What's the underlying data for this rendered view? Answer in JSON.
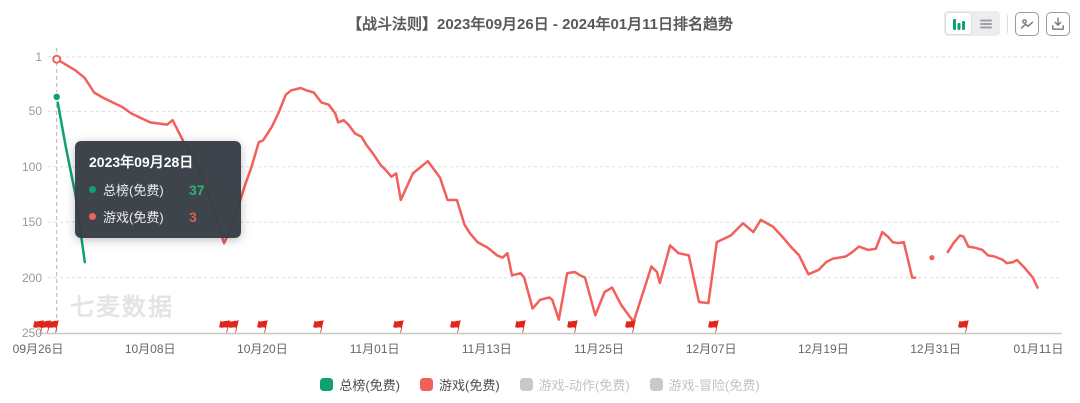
{
  "header": {
    "title": "【战斗法则】2023年09月26日 - 2024年01月11日排名趋势"
  },
  "controls": {
    "view_toggle": [
      {
        "id": "chart-view",
        "icon": "bar-chart-icon",
        "active": true
      },
      {
        "id": "table-view",
        "icon": "list-icon",
        "active": false
      }
    ],
    "actions": [
      {
        "id": "save-image",
        "icon": "image-icon"
      },
      {
        "id": "download",
        "icon": "download-icon"
      }
    ]
  },
  "watermark": "七麦数据",
  "tooltip": {
    "date": "2023年09月28日",
    "rows": [
      {
        "label": "总榜(免费)",
        "value": "37",
        "dot_color": "#10a26e",
        "value_color": "#31b175"
      },
      {
        "label": "游戏(免费)",
        "value": "3",
        "dot_color": "#f1605b",
        "value_color": "#e05a50"
      }
    ]
  },
  "legend": {
    "items": [
      {
        "label": "总榜(免费)",
        "color": "#10a26e",
        "disabled": false
      },
      {
        "label": "游戏(免费)",
        "color": "#f1605b",
        "disabled": false
      },
      {
        "label": "游戏-动作(免费)",
        "color": "#c9c9c9",
        "disabled": true
      },
      {
        "label": "游戏-冒险(免费)",
        "color": "#c9c9c9",
        "disabled": true
      }
    ]
  },
  "chart_data": {
    "type": "line",
    "title": "【战斗法则】2023年09月26日 - 2024年01月11日排名趋势",
    "start_date": "2023-09-26",
    "grid": "horizontal-dashed",
    "y_axis": {
      "inverted": true,
      "range": [
        1,
        250
      ],
      "ticks": [
        1,
        50,
        100,
        150,
        200,
        250
      ]
    },
    "x_axis": {
      "ticks": [
        {
          "label": "09月26日",
          "day": 0
        },
        {
          "label": "10月08日",
          "day": 12
        },
        {
          "label": "10月20日",
          "day": 24
        },
        {
          "label": "11月01日",
          "day": 36
        },
        {
          "label": "11月13日",
          "day": 48
        },
        {
          "label": "11月25日",
          "day": 60
        },
        {
          "label": "12月07日",
          "day": 72
        },
        {
          "label": "12月19日",
          "day": 84
        },
        {
          "label": "12月31日",
          "day": 96
        },
        {
          "label": "01月11日",
          "day": 107
        }
      ]
    },
    "series": [
      {
        "name": "总榜(免费)",
        "color": "#10a26e",
        "segments": [
          [
            [
              2,
              37
            ],
            [
              3,
              83
            ],
            [
              4,
              125
            ],
            [
              5,
              186
            ]
          ]
        ],
        "isolated_points": []
      },
      {
        "name": "游戏(免费)",
        "color": "#f1605b",
        "segments": [
          [
            [
              2,
              3
            ],
            [
              4,
              13
            ],
            [
              5,
              20
            ],
            [
              6,
              33
            ],
            [
              7,
              38
            ],
            [
              9,
              46
            ],
            [
              10,
              52
            ],
            [
              11,
              56
            ],
            [
              12,
              60
            ],
            [
              13.8,
              62
            ],
            [
              14.4,
              58
            ],
            [
              15.6,
              78
            ],
            [
              16.9,
              97
            ],
            [
              18.1,
              121
            ],
            [
              18.8,
              140
            ],
            [
              19.9,
              169
            ],
            [
              20.7,
              154
            ],
            [
              21.3,
              139
            ],
            [
              22.2,
              115
            ],
            [
              22.8,
              101
            ],
            [
              23.6,
              78
            ],
            [
              24.1,
              76
            ],
            [
              25,
              64
            ],
            [
              25.7,
              52
            ],
            [
              26.5,
              35
            ],
            [
              27.1,
              31
            ],
            [
              28.1,
              29
            ],
            [
              28.7,
              31
            ],
            [
              29.5,
              33
            ],
            [
              30.3,
              42
            ],
            [
              31.1,
              44
            ],
            [
              31.8,
              52
            ],
            [
              32.1,
              60
            ],
            [
              32.7,
              58
            ],
            [
              33.2,
              62
            ],
            [
              33.9,
              70
            ],
            [
              34.6,
              73
            ],
            [
              35.1,
              80
            ],
            [
              35.9,
              89
            ],
            [
              36.6,
              98
            ],
            [
              37.2,
              103
            ],
            [
              37.8,
              109
            ],
            [
              38.3,
              106
            ],
            [
              38.8,
              130
            ],
            [
              40.1,
              106
            ],
            [
              41.7,
              95
            ],
            [
              43,
              110
            ],
            [
              43.8,
              130
            ],
            [
              44.8,
              130
            ],
            [
              45.6,
              152
            ],
            [
              46.2,
              160
            ],
            [
              47,
              168
            ],
            [
              48.1,
              173
            ],
            [
              49.1,
              180
            ],
            [
              49.7,
              182
            ],
            [
              50.2,
              178
            ],
            [
              50.7,
              198
            ],
            [
              51.6,
              196
            ],
            [
              52,
              200
            ],
            [
              52.9,
              228
            ],
            [
              53.7,
              220
            ],
            [
              54.7,
              218
            ],
            [
              55,
              220
            ],
            [
              55.7,
              238
            ],
            [
              56.6,
              196
            ],
            [
              57.4,
              195
            ],
            [
              58,
              198
            ],
            [
              58.5,
              200
            ],
            [
              59.6,
              234
            ],
            [
              60.6,
              213
            ],
            [
              61.4,
              209
            ],
            [
              62.4,
              225
            ],
            [
              63.7,
              240
            ],
            [
              65.6,
              190
            ],
            [
              66.2,
              195
            ],
            [
              66.5,
              205
            ],
            [
              67.6,
              171
            ],
            [
              68.5,
              178
            ],
            [
              69.6,
              180
            ],
            [
              70.7,
              222
            ],
            [
              71.7,
              223
            ],
            [
              72.6,
              168
            ],
            [
              74.1,
              162
            ],
            [
              75.4,
              151
            ],
            [
              76.5,
              159
            ],
            [
              77.3,
              148
            ],
            [
              78.6,
              154
            ],
            [
              79.7,
              164
            ],
            [
              80.5,
              172
            ],
            [
              81.4,
              180
            ],
            [
              82.4,
              197
            ],
            [
              83.5,
              193
            ],
            [
              84.3,
              186
            ],
            [
              85,
              183
            ],
            [
              86.4,
              181
            ],
            [
              87.1,
              177
            ],
            [
              87.8,
              172
            ],
            [
              88.8,
              175
            ],
            [
              89.6,
              174
            ],
            [
              90.3,
              159
            ],
            [
              90.9,
              163
            ],
            [
              91.4,
              168
            ],
            [
              92,
              169
            ],
            [
              92.6,
              168
            ],
            [
              93.5,
              200
            ],
            [
              93.8,
              200
            ]
          ],
          [
            [
              97.3,
              177
            ],
            [
              97.9,
              169
            ],
            [
              98.6,
              162
            ],
            [
              99,
              163
            ],
            [
              99.5,
              172
            ],
            [
              100.2,
              173
            ],
            [
              101,
              175
            ],
            [
              101.6,
              180
            ],
            [
              102.3,
              181
            ],
            [
              103.2,
              184
            ],
            [
              103.6,
              187
            ],
            [
              104.3,
              186
            ],
            [
              104.7,
              184
            ],
            [
              105.5,
              191
            ],
            [
              106.4,
              200
            ],
            [
              106.9,
              209
            ]
          ]
        ],
        "isolated_points": [
          [
            95.6,
            182
          ]
        ]
      },
      {
        "name": "游戏-动作(免费)",
        "color": "#c9c9c9",
        "hidden": true,
        "segments": [],
        "isolated_points": []
      },
      {
        "name": "游戏-冒险(免费)",
        "color": "#c9c9c9",
        "hidden": true,
        "segments": [],
        "isolated_points": []
      }
    ],
    "flags_days": [
      0,
      0.8,
      1.6,
      19.9,
      20.9,
      24,
      29.9,
      38.5,
      44.6,
      51.6,
      57.1,
      63.3,
      72.2,
      98.9
    ],
    "highlight": {
      "day": 2,
      "points": [
        {
          "series": "总榜(免费)",
          "rank": 37
        },
        {
          "series": "游戏(免费)",
          "rank": 3
        }
      ]
    }
  }
}
